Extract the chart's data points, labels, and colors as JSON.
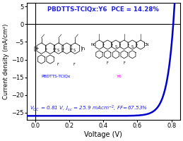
{
  "title": "PBDTTS-TClQx:Y6  PCE = 14.28%",
  "xlabel": "Voltage (V)",
  "ylabel": "Current density (mA/cm²)",
  "annotation": "$V_{OC}$ = 0.81 V, $J_{sc}$ = 25.9 mAcm$^{-2}$, FF=67.53%",
  "voc": 0.81,
  "jsc": -25.9,
  "ff": 0.6753,
  "xlim": [
    -0.05,
    0.85
  ],
  "ylim": [
    -27,
    6
  ],
  "yticks": [
    5,
    0,
    -5,
    -10,
    -15,
    -20,
    -25
  ],
  "xticks": [
    0.0,
    0.2,
    0.4,
    0.6,
    0.8
  ],
  "curve_color": "#0000cc",
  "title_color": "#2222dd",
  "annotation_color": "#2222dd",
  "bg_color": "#ffffff",
  "plot_bg_color": "#ffffff",
  "label_left": "PBDTTS-TClQx",
  "label_right": "Y6"
}
